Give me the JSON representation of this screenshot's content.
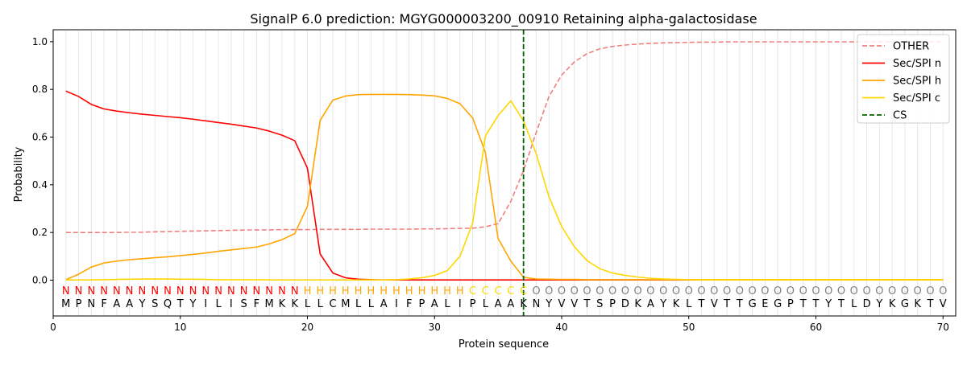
{
  "chart_data": {
    "type": "line",
    "title": "SignalP 6.0 prediction: MGYG000003200_00910 Retaining alpha-galactosidase",
    "xlabel": "Protein sequence",
    "ylabel": "Probability",
    "xlim": [
      0,
      71
    ],
    "ylim": [
      -0.15,
      1.05
    ],
    "xticks": [
      0,
      10,
      20,
      30,
      40,
      50,
      60,
      70
    ],
    "yticks": [
      0.0,
      0.2,
      0.4,
      0.6,
      0.8,
      1.0
    ],
    "ytick_labels": [
      "0.0",
      "0.2",
      "0.4",
      "0.6",
      "0.8",
      "1.0"
    ],
    "grid": "vertical lines at every residue",
    "legend_position": "top-right",
    "sequence": [
      "M",
      "P",
      "N",
      "F",
      "A",
      "A",
      "Y",
      "S",
      "Q",
      "T",
      "Y",
      "I",
      "L",
      "I",
      "S",
      "F",
      "M",
      "K",
      "K",
      "L",
      "L",
      "C",
      "M",
      "L",
      "L",
      "A",
      "I",
      "F",
      "P",
      "A",
      "L",
      "I",
      "P",
      "L",
      "A",
      "A",
      "K",
      "N",
      "Y",
      "V",
      "V",
      "T",
      "S",
      "P",
      "D",
      "K",
      "A",
      "Y",
      "K",
      "L",
      "T",
      "V",
      "T",
      "T",
      "G",
      "E",
      "G",
      "P",
      "T",
      "T",
      "Y",
      "T",
      "L",
      "D",
      "Y",
      "K",
      "G",
      "K",
      "T",
      "V"
    ],
    "region_labels": [
      "N",
      "N",
      "N",
      "N",
      "N",
      "N",
      "N",
      "N",
      "N",
      "N",
      "N",
      "N",
      "N",
      "N",
      "N",
      "N",
      "N",
      "N",
      "N",
      "H",
      "H",
      "H",
      "H",
      "H",
      "H",
      "H",
      "H",
      "H",
      "H",
      "H",
      "H",
      "H",
      "C",
      "C",
      "C",
      "C",
      "C",
      "O",
      "O",
      "O",
      "O",
      "O",
      "O",
      "O",
      "O",
      "O",
      "O",
      "O",
      "O",
      "O",
      "O",
      "O",
      "O",
      "O",
      "O",
      "O",
      "O",
      "O",
      "O",
      "O",
      "O",
      "O",
      "O",
      "O",
      "O",
      "O",
      "O",
      "O",
      "O",
      "O"
    ],
    "region_colors": {
      "N": "#ff0000",
      "H": "#ffa500",
      "C": "#ffd700",
      "O": "#808080"
    },
    "cleavage_site": {
      "name": "CS",
      "x": 37,
      "color": "#006400"
    },
    "series": [
      {
        "name": "OTHER",
        "color": "#f08080",
        "style": "dashed",
        "values": [
          0.2,
          0.2,
          0.2,
          0.2,
          0.2,
          0.201,
          0.201,
          0.203,
          0.204,
          0.205,
          0.206,
          0.207,
          0.208,
          0.209,
          0.21,
          0.211,
          0.211,
          0.212,
          0.212,
          0.212,
          0.213,
          0.213,
          0.213,
          0.213,
          0.214,
          0.214,
          0.214,
          0.214,
          0.215,
          0.215,
          0.216,
          0.217,
          0.218,
          0.224,
          0.237,
          0.33,
          0.46,
          0.62,
          0.77,
          0.86,
          0.915,
          0.95,
          0.97,
          0.98,
          0.986,
          0.99,
          0.993,
          0.995,
          0.996,
          0.997,
          0.998,
          0.998,
          0.999,
          0.999,
          0.999,
          0.999,
          0.999,
          0.999,
          0.999,
          0.999,
          0.999,
          0.999,
          0.999,
          0.999,
          0.999,
          0.999,
          0.999,
          0.999,
          0.999,
          0.999
        ]
      },
      {
        "name": "Sec/SPI n",
        "color": "#ff0000",
        "style": "solid",
        "values": [
          0.793,
          0.77,
          0.737,
          0.718,
          0.709,
          0.702,
          0.696,
          0.691,
          0.686,
          0.681,
          0.675,
          0.668,
          0.661,
          0.654,
          0.646,
          0.638,
          0.625,
          0.608,
          0.585,
          0.47,
          0.11,
          0.03,
          0.01,
          0.004,
          0.002,
          0.001,
          0.001,
          0.001,
          0.001,
          0.001,
          0.001,
          0.001,
          0.001,
          0.001,
          0.001,
          0.001,
          0.001,
          0.001,
          0.001,
          0.001,
          0.001,
          0.001,
          0.001,
          0.001,
          0.001,
          0.001,
          0.001,
          0.001,
          0.001,
          0.001,
          0.001,
          0.001,
          0.001,
          0.001,
          0.001,
          0.001,
          0.001,
          0.001,
          0.001,
          0.001,
          0.001,
          0.001,
          0.001,
          0.001,
          0.001,
          0.001,
          0.001,
          0.001,
          0.001,
          0.001
        ]
      },
      {
        "name": "Sec/SPI h",
        "color": "#ffa500",
        "style": "solid",
        "values": [
          0.002,
          0.025,
          0.055,
          0.072,
          0.08,
          0.086,
          0.09,
          0.094,
          0.098,
          0.103,
          0.108,
          0.114,
          0.121,
          0.127,
          0.133,
          0.139,
          0.152,
          0.17,
          0.195,
          0.31,
          0.67,
          0.755,
          0.772,
          0.778,
          0.779,
          0.779,
          0.779,
          0.778,
          0.776,
          0.773,
          0.762,
          0.74,
          0.68,
          0.535,
          0.175,
          0.08,
          0.012,
          0.005,
          0.004,
          0.003,
          0.003,
          0.002,
          0.002,
          0.002,
          0.002,
          0.002,
          0.002,
          0.002,
          0.002,
          0.002,
          0.002,
          0.002,
          0.002,
          0.002,
          0.002,
          0.002,
          0.002,
          0.002,
          0.002,
          0.002,
          0.002,
          0.002,
          0.002,
          0.002,
          0.002,
          0.002,
          0.002,
          0.002,
          0.002,
          0.002
        ]
      },
      {
        "name": "Sec/SPI c",
        "color": "#ffd700",
        "style": "solid",
        "values": [
          0.001,
          0.001,
          0.001,
          0.002,
          0.003,
          0.004,
          0.005,
          0.005,
          0.005,
          0.004,
          0.004,
          0.003,
          0.002,
          0.002,
          0.002,
          0.002,
          0.001,
          0.001,
          0.001,
          0.001,
          0.001,
          0.001,
          0.001,
          0.001,
          0.001,
          0.001,
          0.002,
          0.005,
          0.01,
          0.02,
          0.04,
          0.1,
          0.24,
          0.605,
          0.69,
          0.752,
          0.668,
          0.53,
          0.35,
          0.225,
          0.14,
          0.082,
          0.048,
          0.03,
          0.02,
          0.013,
          0.008,
          0.005,
          0.003,
          0.002,
          0.001,
          0.001,
          0.001,
          0.001,
          0.001,
          0.001,
          0.001,
          0.001,
          0.001,
          0.001,
          0.001,
          0.001,
          0.001,
          0.001,
          0.001,
          0.001,
          0.001,
          0.001,
          0.001,
          0.001
        ]
      }
    ]
  }
}
